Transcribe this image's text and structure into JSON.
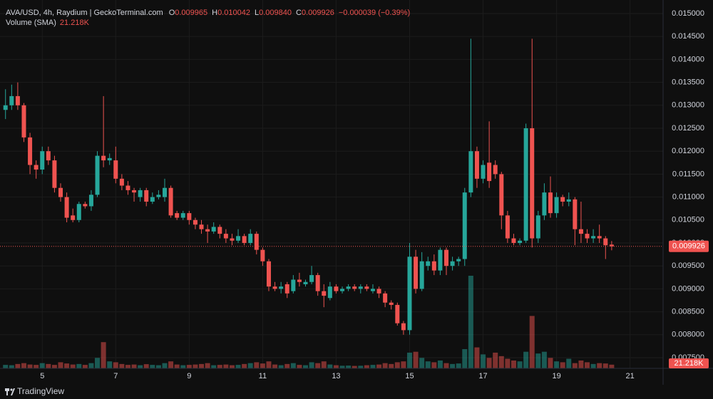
{
  "chart_data": {
    "type": "candlestick",
    "symbol": "AVA/USD, 4h, Raydium | GeckoTerminal.com",
    "ohlc_legend": [
      {
        "key": "O",
        "value": "0.009965"
      },
      {
        "key": "H",
        "value": "0.010042"
      },
      {
        "key": "L",
        "value": "0.009840"
      },
      {
        "key": "C",
        "value": "0.009926"
      }
    ],
    "change": "−0.000039 (−0.39%)",
    "volume_title": "Volume (SMA)",
    "volume_label": "21.218K",
    "up_color": "#26a69a",
    "down_color": "#ef5350",
    "x": [
      4,
      4.1667,
      4.3333,
      4.5,
      4.6667,
      4.8333,
      5,
      5.1667,
      5.3333,
      5.5,
      5.6667,
      5.8333,
      6,
      6.1667,
      6.3333,
      6.5,
      6.6667,
      6.8333,
      7,
      7.1667,
      7.3333,
      7.5,
      7.6667,
      7.8333,
      8,
      8.1667,
      8.3333,
      8.5,
      8.6667,
      8.8333,
      9,
      9.1667,
      9.3333,
      9.5,
      9.6667,
      9.8333,
      10,
      10.1667,
      10.3333,
      10.5,
      10.6667,
      10.8333,
      11,
      11.1667,
      11.3333,
      11.5,
      11.6667,
      11.8333,
      12,
      12.1667,
      12.3333,
      12.5,
      12.6667,
      12.8333,
      13,
      13.1667,
      13.3333,
      13.5,
      13.6667,
      13.8333,
      14,
      14.1667,
      14.3333,
      14.5,
      14.6667,
      14.8333,
      15,
      15.1667,
      15.3333,
      15.5,
      15.6667,
      15.8333,
      16,
      16.1667,
      16.3333,
      16.5,
      16.6667,
      16.8333,
      17,
      17.1667,
      17.3333,
      17.5,
      17.6667,
      17.8333,
      18,
      18.1667,
      18.3333,
      18.5,
      18.6667,
      18.8333,
      19,
      19.1667,
      19.3333,
      19.5,
      19.6667,
      19.8333,
      20,
      20.1667,
      20.3333,
      20.5
    ],
    "open": [
      0.0129,
      0.013,
      0.0132,
      0.013,
      0.0123,
      0.0117,
      0.0116,
      0.012,
      0.0118,
      0.0112,
      0.011,
      0.0106,
      0.0105,
      0.01085,
      0.0108,
      0.01105,
      0.0119,
      0.0118,
      0.0118,
      0.0114,
      0.01125,
      0.01115,
      0.011,
      0.01115,
      0.0109,
      0.011,
      0.011,
      0.0112,
      0.01065,
      0.01055,
      0.01065,
      0.0105,
      0.0104,
      0.0103,
      0.01025,
      0.01035,
      0.0102,
      0.0101,
      0.01005,
      0.01015,
      0.01,
      0.0102,
      0.00985,
      0.0096,
      0.00905,
      0.009,
      0.0091,
      0.00895,
      0.0092,
      0.0091,
      0.00915,
      0.0093,
      0.00895,
      0.0088,
      0.00905,
      0.00895,
      0.009,
      0.00905,
      0.009,
      0.00905,
      0.00895,
      0.009,
      0.0089,
      0.0087,
      0.00865,
      0.00825,
      0.0081,
      0.0097,
      0.009,
      0.0095,
      0.0096,
      0.0094,
      0.00985,
      0.0095,
      0.0096,
      0.00965,
      0.0111,
      0.012,
      0.0114,
      0.01175,
      0.0117,
      0.0115,
      0.0106,
      0.0101,
      0.01,
      0.01005,
      0.0125,
      0.0101,
      0.0106,
      0.0111,
      0.01065,
      0.011,
      0.0109,
      0.01095,
      0.0103,
      0.0102,
      0.0101,
      0.01015,
      0.0101,
      0.009965
    ],
    "high": [
      0.01335,
      0.01345,
      0.0135,
      0.01305,
      0.0124,
      0.0118,
      0.0121,
      0.0121,
      0.0119,
      0.0113,
      0.0111,
      0.01075,
      0.0109,
      0.0109,
      0.01115,
      0.012,
      0.0132,
      0.01195,
      0.0121,
      0.0115,
      0.01135,
      0.0112,
      0.0112,
      0.0112,
      0.0111,
      0.01115,
      0.0114,
      0.01125,
      0.0107,
      0.0107,
      0.0107,
      0.01055,
      0.0105,
      0.0104,
      0.01045,
      0.0104,
      0.0103,
      0.0102,
      0.0103,
      0.0102,
      0.0103,
      0.01025,
      0.0099,
      0.00965,
      0.00915,
      0.00915,
      0.00915,
      0.0093,
      0.00935,
      0.0092,
      0.0095,
      0.00935,
      0.0091,
      0.00915,
      0.0091,
      0.00905,
      0.0091,
      0.0091,
      0.0091,
      0.0091,
      0.0091,
      0.00905,
      0.00895,
      0.00875,
      0.0087,
      0.0083,
      0.01,
      0.00985,
      0.0098,
      0.0097,
      0.00975,
      0.0099,
      0.0099,
      0.0097,
      0.0097,
      0.0112,
      0.01445,
      0.0121,
      0.0118,
      0.01265,
      0.0118,
      0.01155,
      0.0107,
      0.0102,
      0.0101,
      0.0126,
      0.01445,
      0.0107,
      0.0113,
      0.01145,
      0.0111,
      0.01105,
      0.0111,
      0.011,
      0.0109,
      0.0103,
      0.0103,
      0.0104,
      0.01015,
      0.010042
    ],
    "low": [
      0.0127,
      0.0129,
      0.0129,
      0.0122,
      0.0115,
      0.0114,
      0.0115,
      0.0117,
      0.0111,
      0.0109,
      0.01045,
      0.01045,
      0.01045,
      0.01075,
      0.0107,
      0.011,
      0.01165,
      0.0117,
      0.0113,
      0.01115,
      0.01105,
      0.0109,
      0.0109,
      0.0108,
      0.01085,
      0.01095,
      0.0109,
      0.01055,
      0.0105,
      0.0105,
      0.0104,
      0.0103,
      0.0102,
      0.01,
      0.0102,
      0.0101,
      0.01,
      0.00995,
      0.01,
      0.00995,
      0.00995,
      0.00975,
      0.0095,
      0.00895,
      0.00895,
      0.0089,
      0.0088,
      0.0089,
      0.00905,
      0.00905,
      0.0091,
      0.00885,
      0.0086,
      0.00875,
      0.0089,
      0.0089,
      0.00895,
      0.00895,
      0.0089,
      0.00895,
      0.0089,
      0.0088,
      0.0086,
      0.00855,
      0.0082,
      0.008,
      0.008,
      0.0089,
      0.00895,
      0.0094,
      0.0093,
      0.0093,
      0.0093,
      0.0094,
      0.0095,
      0.0095,
      0.011,
      0.0112,
      0.0113,
      0.0112,
      0.0114,
      0.0103,
      0.01,
      0.00995,
      0.00995,
      0.01,
      0.0099,
      0.01,
      0.0105,
      0.01055,
      0.01055,
      0.0108,
      0.0108,
      0.00995,
      0.01,
      0.01,
      0.01,
      0.01,
      0.00965,
      0.00984
    ],
    "close": [
      0.013,
      0.0132,
      0.013,
      0.0123,
      0.0117,
      0.0116,
      0.012,
      0.0118,
      0.0112,
      0.011,
      0.01055,
      0.0105,
      0.01085,
      0.0108,
      0.01105,
      0.0119,
      0.0118,
      0.01185,
      0.0114,
      0.01125,
      0.01115,
      0.0111,
      0.01115,
      0.0109,
      0.011,
      0.01105,
      0.0112,
      0.0106,
      0.01055,
      0.01065,
      0.0105,
      0.0104,
      0.0103,
      0.01025,
      0.01035,
      0.0102,
      0.0101,
      0.01005,
      0.01015,
      0.01,
      0.0102,
      0.00985,
      0.0096,
      0.00905,
      0.009,
      0.00905,
      0.0089,
      0.0092,
      0.00915,
      0.00915,
      0.0093,
      0.00895,
      0.00885,
      0.00905,
      0.00895,
      0.009,
      0.00905,
      0.009,
      0.00905,
      0.009,
      0.009,
      0.0089,
      0.0087,
      0.00865,
      0.00825,
      0.0081,
      0.0097,
      0.009,
      0.0096,
      0.0096,
      0.0094,
      0.00985,
      0.0095,
      0.0096,
      0.00965,
      0.0111,
      0.012,
      0.0114,
      0.0117,
      0.01135,
      0.0115,
      0.0106,
      0.0101,
      0.01,
      0.01005,
      0.0125,
      0.0101,
      0.0106,
      0.0111,
      0.01065,
      0.011,
      0.0109,
      0.01095,
      0.0103,
      0.0102,
      0.0101,
      0.01015,
      0.0101,
      0.00995,
      0.009926
    ],
    "volume": [
      20,
      18,
      25,
      30,
      22,
      20,
      30,
      25,
      20,
      35,
      28,
      22,
      25,
      20,
      30,
      60,
      150,
      40,
      35,
      25,
      20,
      22,
      18,
      24,
      20,
      18,
      30,
      40,
      22,
      18,
      20,
      22,
      25,
      30,
      18,
      20,
      22,
      18,
      20,
      25,
      30,
      35,
      28,
      40,
      22,
      18,
      25,
      30,
      20,
      18,
      35,
      30,
      40,
      22,
      18,
      15,
      16,
      14,
      15,
      18,
      20,
      22,
      30,
      25,
      35,
      40,
      90,
      95,
      60,
      40,
      35,
      45,
      30,
      25,
      28,
      110,
      530,
      120,
      80,
      60,
      90,
      70,
      55,
      45,
      40,
      95,
      300,
      85,
      95,
      60,
      40,
      35,
      55,
      30,
      45,
      35,
      25,
      30,
      28,
      21.218
    ],
    "xlim": [
      3.85,
      21.9
    ],
    "xticks": [
      5,
      7,
      9,
      11,
      13,
      15,
      17,
      19,
      21
    ],
    "ylim": [
      0.007267,
      0.015295
    ],
    "yticks": [
      {
        "value": 0.0075,
        "label": "0.007500"
      },
      {
        "value": 0.008,
        "label": "0.008000"
      },
      {
        "value": 0.0085,
        "label": "0.008500"
      },
      {
        "value": 0.009,
        "label": "0.009000"
      },
      {
        "value": 0.0095,
        "label": "0.009500"
      },
      {
        "value": 0.01,
        "label": "0.010000"
      },
      {
        "value": 0.0105,
        "label": "0.010500"
      },
      {
        "value": 0.011,
        "label": "0.011000"
      },
      {
        "value": 0.0115,
        "label": "0.011500"
      },
      {
        "value": 0.012,
        "label": "0.012000"
      },
      {
        "value": 0.0125,
        "label": "0.012500"
      },
      {
        "value": 0.013,
        "label": "0.013000"
      },
      {
        "value": 0.0135,
        "label": "0.013500"
      },
      {
        "value": 0.014,
        "label": "0.014000"
      },
      {
        "value": 0.0145,
        "label": "0.014500"
      },
      {
        "value": 0.015,
        "label": "0.015000"
      }
    ],
    "grid": true
  },
  "brand": "TradingView"
}
